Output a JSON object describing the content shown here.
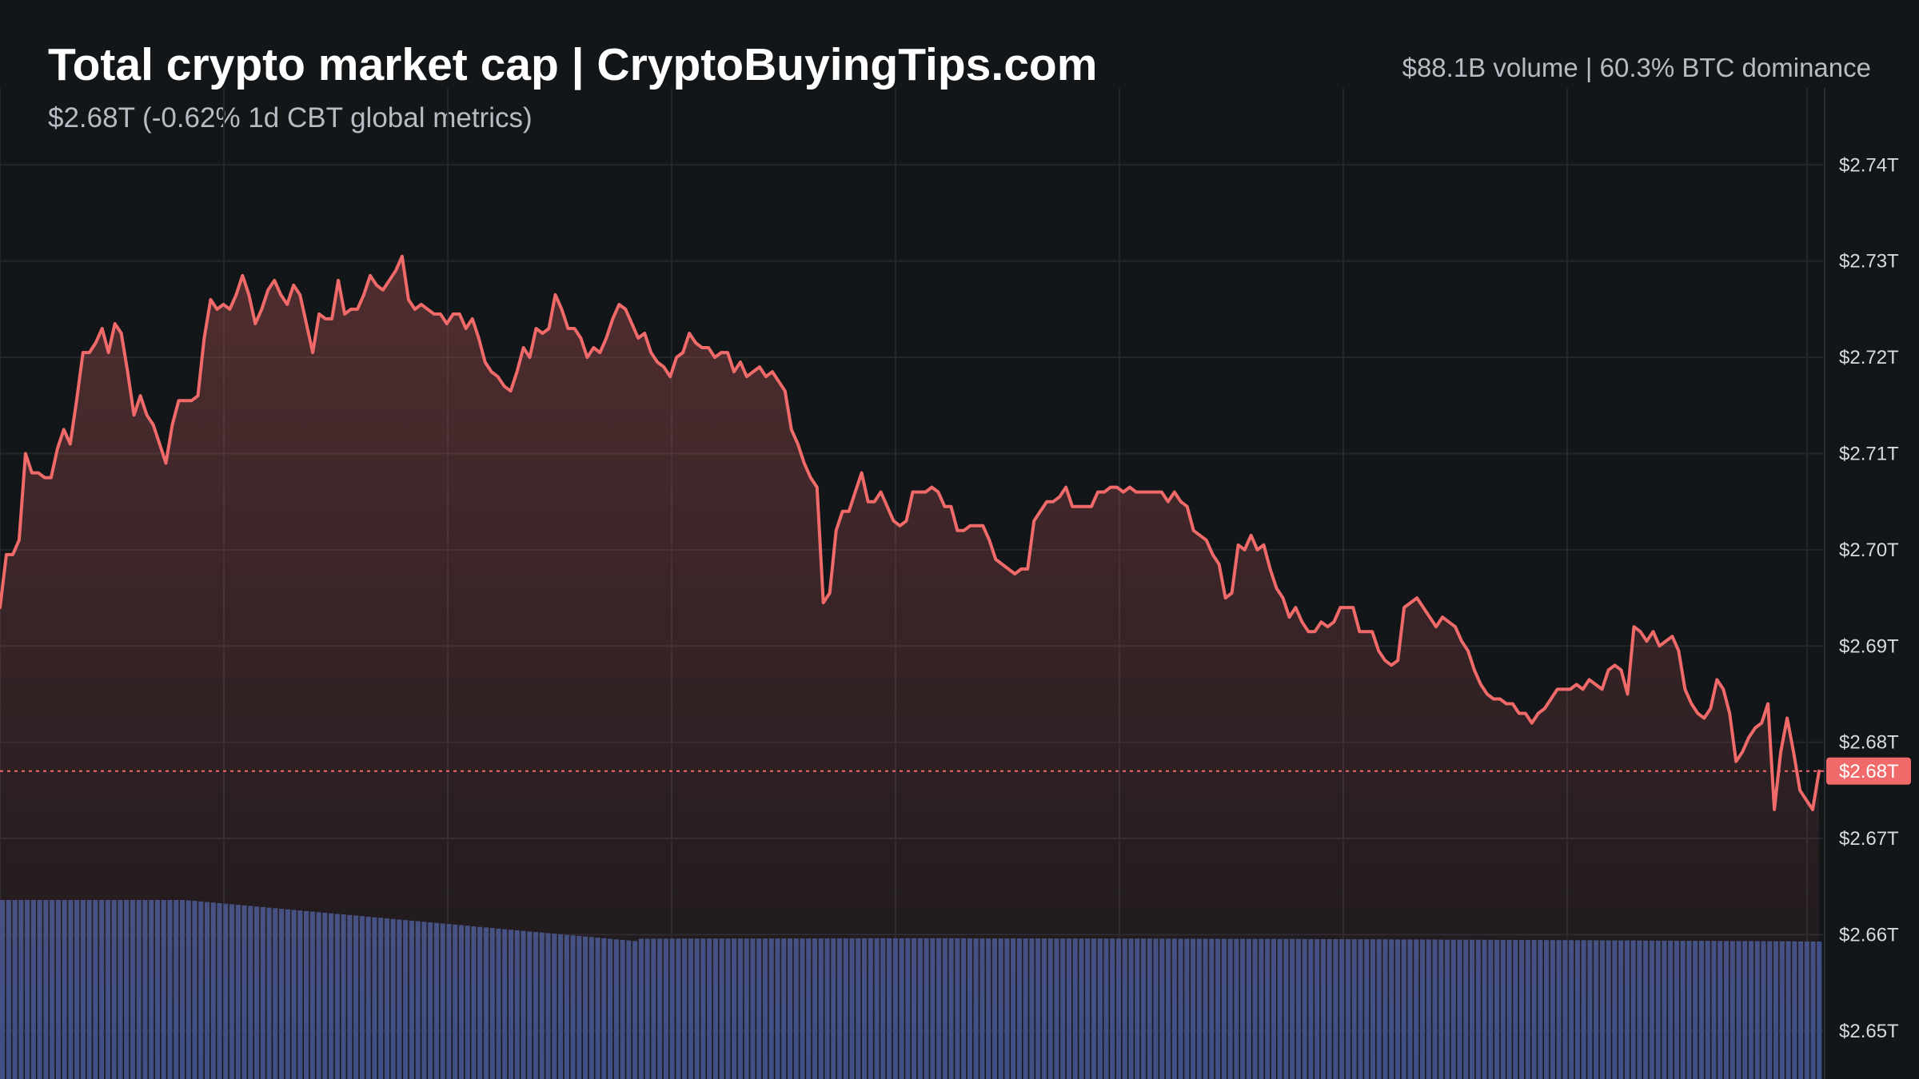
{
  "header": {
    "title": "Total crypto market cap | CryptoBuyingTips.com",
    "subtitle": "$2.68T (-0.62% 1d CBT global metrics)",
    "stats": "$88.1B volume | 60.3% BTC dominance"
  },
  "colors": {
    "background": "#131619",
    "line": "#f06a6a",
    "volume": "#3a4f86",
    "grid": "#22262d"
  },
  "chart_data": {
    "type": "line",
    "title": "Total crypto market cap | CryptoBuyingTips.com",
    "xlabel": "",
    "ylabel": "",
    "y_unit": "T",
    "ylim": [
      2.645,
      2.748
    ],
    "y_ticks": [
      {
        "value": 2.74,
        "label": "$2.74T"
      },
      {
        "value": 2.73,
        "label": "$2.73T"
      },
      {
        "value": 2.72,
        "label": "$2.72T"
      },
      {
        "value": 2.71,
        "label": "$2.71T"
      },
      {
        "value": 2.7,
        "label": "$2.70T"
      },
      {
        "value": 2.69,
        "label": "$2.69T"
      },
      {
        "value": 2.68,
        "label": "$2.68T"
      },
      {
        "value": 2.67,
        "label": "$2.67T"
      },
      {
        "value": 2.66,
        "label": "$2.66T"
      },
      {
        "value": 2.65,
        "label": "$2.65T"
      }
    ],
    "current": {
      "value": 2.677,
      "label": "$2.68T"
    },
    "grid": true,
    "series": [
      {
        "values": [
          2.694,
          2.6995,
          2.6995,
          2.701,
          2.71,
          2.708,
          2.708,
          2.7075,
          2.7075,
          2.7105,
          2.7125,
          2.711,
          2.7155,
          2.7205,
          2.7205,
          2.7215,
          2.723,
          2.7205,
          2.7235,
          2.7225,
          2.7185,
          2.714,
          2.716,
          2.714,
          2.713,
          2.711,
          2.709,
          2.713,
          2.7155,
          2.7155,
          2.7155,
          2.716,
          2.722,
          2.726,
          2.725,
          2.7255,
          2.725,
          2.7265,
          2.7285,
          2.7265,
          2.7235,
          2.725,
          2.727,
          2.728,
          2.7265,
          2.7255,
          2.7275,
          2.7265,
          2.7235,
          2.7205,
          2.7245,
          2.724,
          2.724,
          2.728,
          2.7245,
          2.725,
          2.725,
          2.7265,
          2.7285,
          2.7275,
          2.727,
          2.728,
          2.729,
          2.7305,
          2.726,
          2.725,
          2.7255,
          2.725,
          2.7245,
          2.7245,
          2.7235,
          2.7245,
          2.7245,
          2.723,
          2.724,
          2.722,
          2.7195,
          2.7185,
          2.718,
          2.717,
          2.7165,
          2.7185,
          2.721,
          2.72,
          2.723,
          2.7225,
          2.723,
          2.7265,
          2.725,
          2.723,
          2.723,
          2.722,
          2.72,
          2.721,
          2.7205,
          2.722,
          2.724,
          2.7255,
          2.725,
          2.7235,
          2.722,
          2.7225,
          2.7205,
          2.7195,
          2.719,
          2.718,
          2.72,
          2.7205,
          2.7225,
          2.7215,
          2.721,
          2.721,
          2.72,
          2.7205,
          2.7205,
          2.7185,
          2.7195,
          2.718,
          2.7185,
          2.719,
          2.718,
          2.7185,
          2.7175,
          2.7165,
          2.7125,
          2.711,
          2.709,
          2.7075,
          2.7065,
          2.6945,
          2.6955,
          2.702,
          2.704,
          2.704,
          2.706,
          2.708,
          2.705,
          2.705,
          2.706,
          2.7045,
          2.703,
          2.7025,
          2.703,
          2.706,
          2.706,
          2.706,
          2.7065,
          2.706,
          2.7045,
          2.7045,
          2.702,
          2.702,
          2.7025,
          2.7025,
          2.7025,
          2.701,
          2.699,
          2.6985,
          2.698,
          2.6975,
          2.698,
          2.698,
          2.703,
          2.704,
          2.705,
          2.705,
          2.7055,
          2.7065,
          2.7045,
          2.7045,
          2.7045,
          2.7045,
          2.706,
          2.706,
          2.7065,
          2.7065,
          2.706,
          2.7065,
          2.706,
          2.706,
          2.706,
          2.706,
          2.706,
          2.705,
          2.706,
          2.705,
          2.7045,
          2.702,
          2.7015,
          2.701,
          2.6995,
          2.6985,
          2.695,
          2.6955,
          2.7005,
          2.7,
          2.7015,
          2.7,
          2.7005,
          2.698,
          2.696,
          2.695,
          2.693,
          2.694,
          2.6925,
          2.6915,
          2.6915,
          2.6925,
          2.692,
          2.6925,
          2.694,
          2.694,
          2.694,
          2.6915,
          2.6915,
          2.6915,
          2.6895,
          2.6885,
          2.688,
          2.6885,
          2.694,
          2.6945,
          2.695,
          2.694,
          2.693,
          2.692,
          2.693,
          2.6925,
          2.692,
          2.6905,
          2.6895,
          2.6875,
          2.686,
          2.685,
          2.6845,
          2.6845,
          2.684,
          2.684,
          2.683,
          2.683,
          2.682,
          2.683,
          2.6835,
          2.6845,
          2.6855,
          2.6855,
          2.6855,
          2.686,
          2.6855,
          2.6865,
          2.686,
          2.6855,
          2.6875,
          2.688,
          2.6875,
          2.685,
          2.692,
          2.6915,
          2.6905,
          2.6915,
          2.69,
          2.6905,
          2.691,
          2.6895,
          2.6855,
          2.684,
          2.683,
          2.6825,
          2.6835,
          2.6865,
          2.6855,
          2.683,
          2.678,
          2.679,
          2.6805,
          2.6815,
          2.682,
          2.684,
          2.673,
          2.679,
          2.6825,
          2.679,
          2.675,
          2.674,
          2.673,
          2.677
        ]
      }
    ],
    "volume": [
      100,
      100,
      100,
      100,
      100,
      100,
      100,
      100,
      100,
      100,
      100,
      100,
      100,
      100,
      100,
      100,
      100,
      100,
      100,
      100,
      100,
      100,
      100,
      100,
      100,
      100,
      100,
      100,
      100,
      100,
      100,
      100,
      100,
      100,
      100,
      100,
      100,
      100,
      100,
      100,
      100,
      100,
      100,
      100,
      100,
      100,
      100,
      100,
      100,
      100,
      100,
      100,
      100,
      100,
      100,
      100,
      100,
      100,
      100,
      100,
      100,
      100,
      100,
      100,
      100,
      100,
      100,
      100,
      100,
      100,
      100,
      100,
      100,
      100,
      100,
      100,
      100,
      100,
      100,
      100,
      100,
      100,
      100,
      100,
      100,
      100,
      100,
      100,
      100,
      100,
      100,
      100,
      100,
      100,
      100,
      100,
      100,
      100,
      100,
      100,
      100,
      100,
      100,
      100,
      100,
      100,
      100,
      100,
      100,
      100,
      100,
      100,
      100,
      100,
      100,
      100,
      100,
      100,
      100,
      100,
      100,
      100,
      100,
      100,
      100,
      100,
      100,
      100,
      100,
      100,
      100,
      100,
      100,
      100,
      100,
      100,
      100,
      100,
      100,
      100,
      100,
      100,
      100,
      100,
      100,
      100,
      100,
      100,
      100,
      100,
      100,
      100,
      100,
      100,
      100,
      100,
      100,
      100,
      100,
      100,
      100,
      100,
      100,
      100,
      100,
      100,
      100,
      100,
      100,
      100,
      100,
      100,
      100,
      100,
      100,
      100,
      100,
      100,
      100,
      100,
      100,
      100,
      100,
      100,
      100,
      100,
      100,
      100,
      100,
      100,
      100,
      100,
      100,
      100,
      100,
      100,
      100,
      100,
      100,
      100,
      100,
      100,
      100,
      100,
      100,
      100,
      100,
      100,
      100,
      100,
      100,
      100,
      100,
      100,
      100,
      100,
      100,
      100,
      100,
      100,
      100,
      100,
      100,
      100,
      100,
      100,
      100,
      100,
      100,
      100,
      100,
      100,
      100,
      100,
      100,
      100,
      100,
      100,
      100,
      100,
      100,
      100,
      100,
      100,
      100,
      100,
      100,
      100,
      100,
      100,
      100,
      100,
      100,
      100,
      100,
      100,
      100,
      100,
      100,
      100,
      100,
      100,
      100,
      100,
      100,
      100,
      100,
      100,
      100,
      100,
      100,
      100,
      100,
      100,
      100,
      100,
      100,
      100,
      100,
      100,
      100,
      100,
      100,
      100,
      100,
      100,
      100,
      100,
      100,
      100,
      100,
      100,
      100,
      100
    ]
  }
}
